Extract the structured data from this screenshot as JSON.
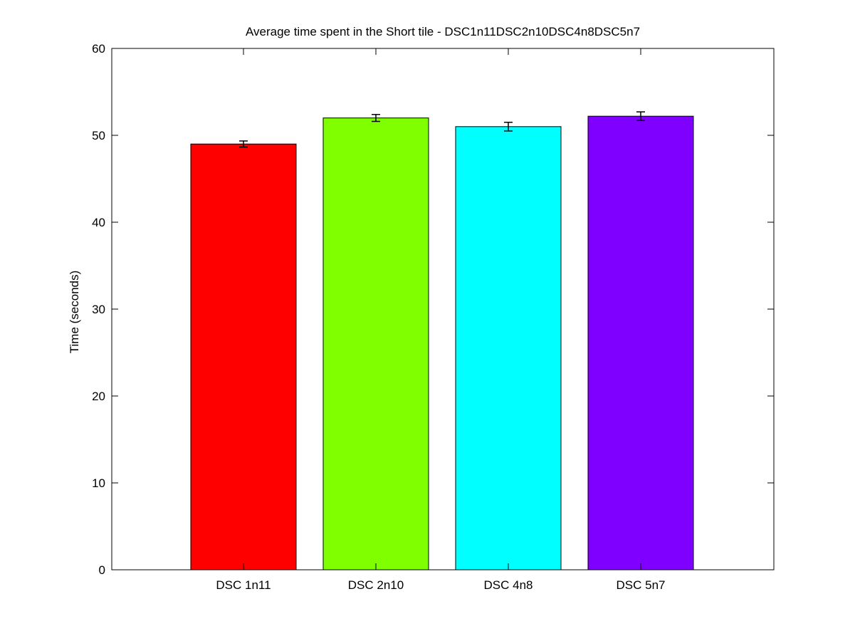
{
  "chart_data": {
    "type": "bar",
    "title": "Average time spent in the Short tile - DSC1n11DSC2n10DSC4n8DSC5n7",
    "xlabel": "",
    "ylabel": "Time (seconds)",
    "ylim": [
      0,
      60
    ],
    "yticks": [
      0,
      10,
      20,
      30,
      40,
      50,
      60
    ],
    "categories": [
      "DSC 1n11",
      "DSC 2n10",
      "DSC 4n8",
      "DSC 5n7"
    ],
    "values": [
      49.0,
      52.0,
      51.0,
      52.2
    ],
    "errors": [
      0.35,
      0.4,
      0.5,
      0.5
    ],
    "colors": [
      "#ff0000",
      "#80ff00",
      "#00ffff",
      "#8000ff"
    ],
    "grid": false,
    "legend": "none"
  }
}
